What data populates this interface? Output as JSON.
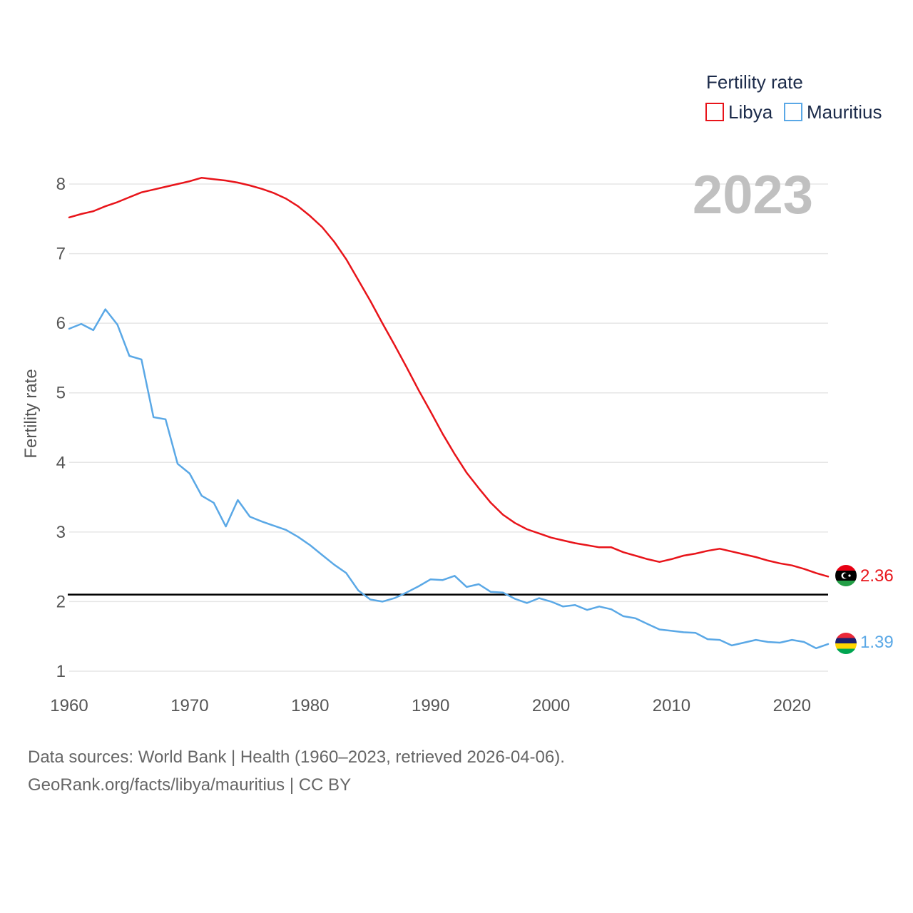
{
  "chart_data": {
    "type": "line",
    "title": "",
    "legend_title": "Fertility rate",
    "legend_position": "top-right",
    "year_label": "2023",
    "ylabel": "Fertility rate",
    "xlabel": "",
    "xlim": [
      1960,
      2023
    ],
    "ylim": [
      1,
      8
    ],
    "x_ticks": [
      1960,
      1970,
      1980,
      1990,
      2000,
      2010,
      2020
    ],
    "y_ticks": [
      1,
      2,
      3,
      4,
      5,
      6,
      7,
      8
    ],
    "grid": true,
    "reference_line": 2.1,
    "x": [
      1960,
      1961,
      1962,
      1963,
      1964,
      1965,
      1966,
      1967,
      1968,
      1969,
      1970,
      1971,
      1972,
      1973,
      1974,
      1975,
      1976,
      1977,
      1978,
      1979,
      1980,
      1981,
      1982,
      1983,
      1984,
      1985,
      1986,
      1987,
      1988,
      1989,
      1990,
      1991,
      1992,
      1993,
      1994,
      1995,
      1996,
      1997,
      1998,
      1999,
      2000,
      2001,
      2002,
      2003,
      2004,
      2005,
      2006,
      2007,
      2008,
      2009,
      2010,
      2011,
      2012,
      2013,
      2014,
      2015,
      2016,
      2017,
      2018,
      2019,
      2020,
      2021,
      2022,
      2023
    ],
    "series": [
      {
        "name": "Libya",
        "color": "#e8141a",
        "end_label": "2.36",
        "values": [
          7.52,
          7.57,
          7.61,
          7.68,
          7.74,
          7.81,
          7.88,
          7.92,
          7.96,
          8.0,
          8.04,
          8.09,
          8.07,
          8.05,
          8.02,
          7.98,
          7.93,
          7.87,
          7.79,
          7.68,
          7.54,
          7.38,
          7.17,
          6.92,
          6.62,
          6.32,
          6.0,
          5.69,
          5.37,
          5.04,
          4.73,
          4.41,
          4.12,
          3.85,
          3.63,
          3.42,
          3.25,
          3.13,
          3.04,
          2.98,
          2.92,
          2.88,
          2.84,
          2.81,
          2.78,
          2.78,
          2.71,
          2.66,
          2.61,
          2.57,
          2.61,
          2.66,
          2.69,
          2.73,
          2.76,
          2.72,
          2.68,
          2.64,
          2.59,
          2.55,
          2.52,
          2.47,
          2.41,
          2.36
        ]
      },
      {
        "name": "Mauritius",
        "color": "#5aa8e6",
        "end_label": "1.39",
        "values": [
          5.92,
          5.99,
          5.9,
          6.2,
          5.98,
          5.53,
          5.48,
          4.65,
          4.62,
          3.98,
          3.84,
          3.52,
          3.42,
          3.08,
          3.46,
          3.22,
          3.15,
          3.09,
          3.03,
          2.93,
          2.81,
          2.67,
          2.53,
          2.41,
          2.16,
          2.03,
          2.0,
          2.05,
          2.13,
          2.22,
          2.32,
          2.31,
          2.37,
          2.21,
          2.25,
          2.14,
          2.13,
          2.04,
          1.98,
          2.05,
          2.0,
          1.93,
          1.95,
          1.88,
          1.93,
          1.89,
          1.79,
          1.76,
          1.68,
          1.6,
          1.58,
          1.56,
          1.55,
          1.46,
          1.45,
          1.37,
          1.41,
          1.45,
          1.42,
          1.41,
          1.45,
          1.42,
          1.33,
          1.39
        ]
      }
    ]
  },
  "footer": {
    "line1": "Data sources: World Bank | Health (1960–2023, retrieved 2026-04-06).",
    "line2": "GeoRank.org/facts/libya/mauritius | CC BY"
  }
}
